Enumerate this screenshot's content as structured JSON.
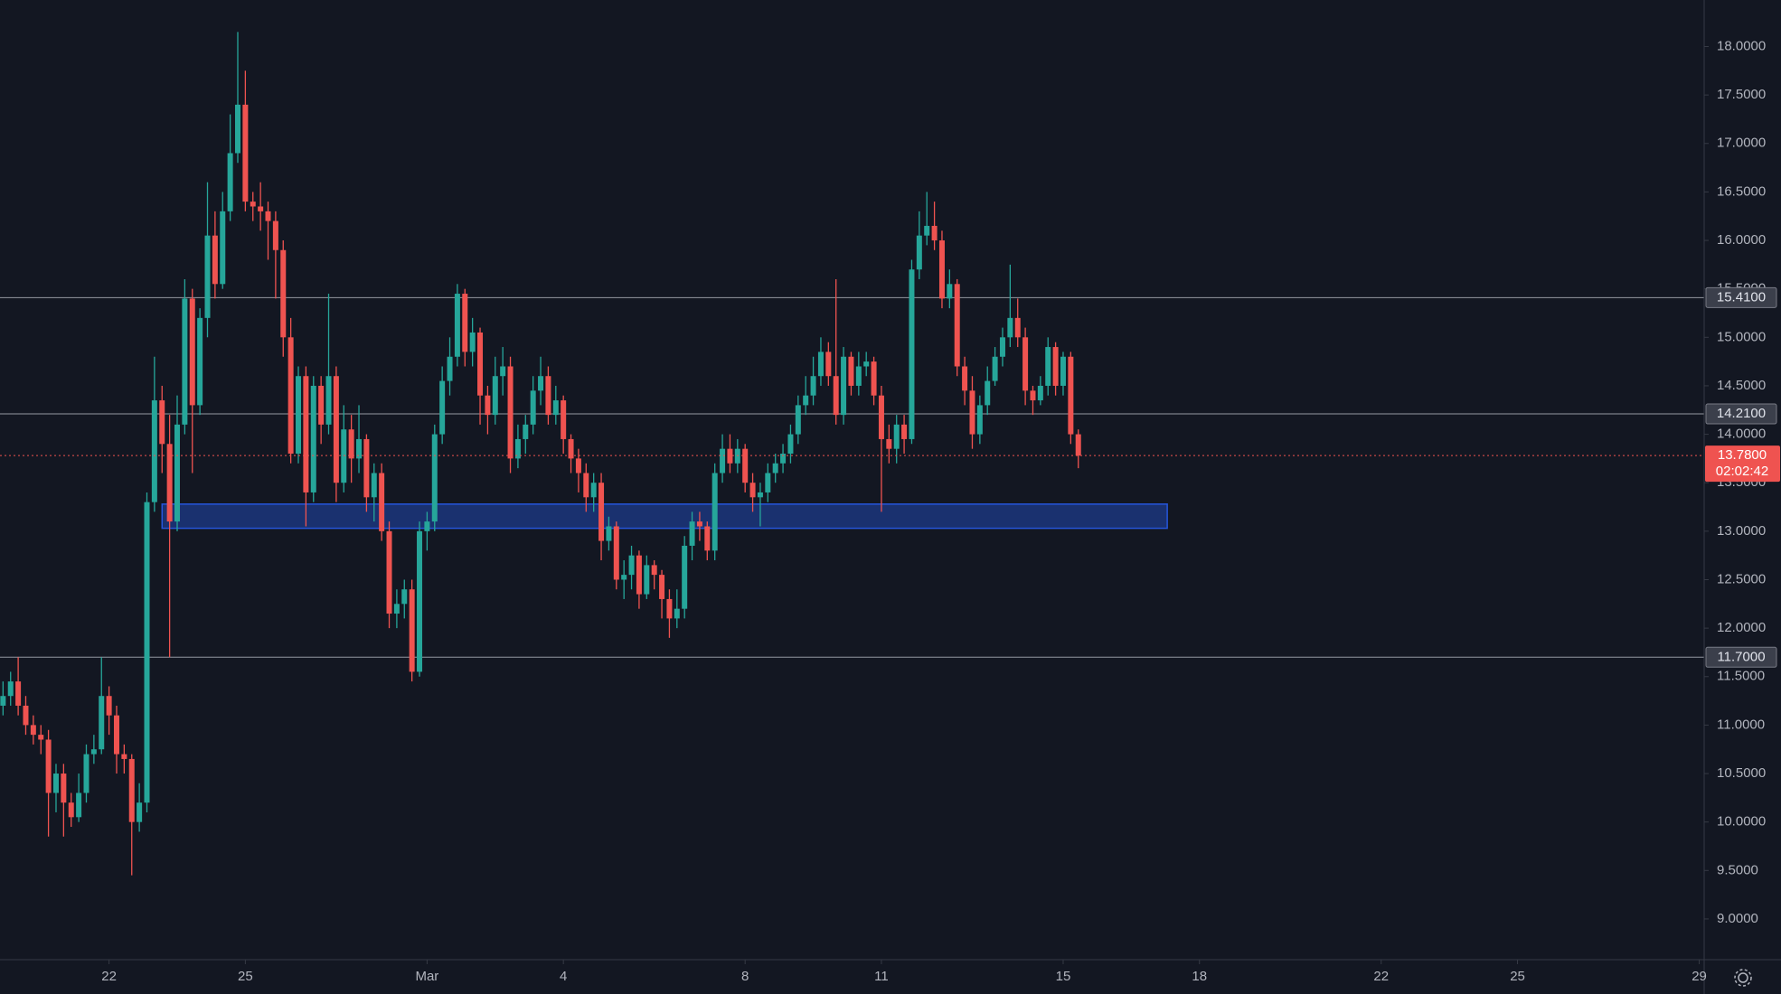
{
  "chart_data": {
    "type": "candlestick",
    "up_color": "#26a69a",
    "down_color": "#ef5350",
    "x": [
      -56,
      -52,
      -48,
      -44,
      -40,
      -36,
      -32,
      -28,
      -24,
      -20,
      -16,
      -12,
      -8,
      -4,
      0,
      4,
      8,
      12,
      16,
      20,
      24,
      28,
      32,
      36,
      40,
      44,
      48,
      52,
      56,
      60,
      64,
      68,
      72,
      76,
      80,
      84,
      88,
      92,
      96,
      100,
      104,
      108,
      112,
      116,
      120,
      124,
      128,
      132,
      136,
      140,
      144,
      148,
      152,
      156,
      160,
      164,
      168,
      172,
      176,
      180,
      184,
      188,
      192,
      196,
      200,
      204,
      208,
      212,
      216,
      220,
      224,
      228,
      232,
      236,
      240,
      244,
      248,
      252,
      256,
      260,
      264,
      268,
      272,
      276,
      280,
      284,
      288,
      292,
      296,
      300,
      304,
      308,
      312,
      316,
      320,
      324,
      328,
      332,
      336,
      340,
      344,
      348,
      352,
      356,
      360,
      364,
      368,
      372,
      376,
      380,
      384,
      388,
      392,
      396,
      400,
      404,
      408,
      412,
      416,
      420,
      424,
      428,
      432,
      436,
      440,
      444,
      448,
      452,
      456,
      460,
      464,
      468,
      472,
      476,
      480,
      484,
      488,
      492,
      496,
      500,
      504,
      508,
      512
    ],
    "open": [
      11.2,
      11.3,
      11.45,
      11.2,
      11.0,
      10.9,
      10.85,
      10.3,
      10.5,
      10.2,
      10.05,
      10.3,
      10.7,
      10.75,
      11.3,
      11.1,
      10.7,
      10.65,
      10.0,
      10.2,
      13.3,
      14.35,
      13.9,
      13.1,
      14.1,
      15.4,
      14.3,
      15.2,
      16.05,
      15.55,
      16.3,
      16.9,
      17.4,
      16.4,
      16.35,
      16.3,
      16.2,
      15.9,
      15.0,
      13.8,
      14.6,
      13.4,
      14.5,
      14.1,
      14.6,
      13.5,
      14.05,
      13.75,
      13.95,
      13.35,
      13.6,
      13.0,
      12.15,
      12.25,
      12.4,
      11.55,
      13.0,
      13.1,
      14.0,
      14.55,
      14.8,
      15.45,
      14.85,
      15.05,
      14.4,
      14.2,
      14.6,
      14.7,
      13.75,
      13.95,
      14.1,
      14.45,
      14.6,
      14.2,
      14.35,
      13.95,
      13.75,
      13.6,
      13.35,
      13.5,
      12.9,
      13.05,
      12.5,
      12.55,
      12.75,
      12.35,
      12.65,
      12.55,
      12.3,
      12.1,
      12.2,
      12.85,
      13.1,
      13.05,
      12.8,
      13.6,
      13.85,
      13.7,
      13.85,
      13.5,
      13.35,
      13.4,
      13.6,
      13.7,
      13.8,
      14.0,
      14.3,
      14.4,
      14.6,
      14.85,
      14.6,
      14.2,
      14.8,
      14.5,
      14.7,
      14.75,
      14.4,
      13.95,
      13.85,
      14.1,
      13.95,
      15.7,
      16.05,
      16.15,
      16.0,
      15.4,
      15.55,
      14.7,
      14.45,
      14.0,
      14.3,
      14.55,
      14.8,
      15.0,
      15.2,
      15.0,
      14.45,
      14.35,
      14.5,
      14.9,
      14.5,
      14.8,
      14.0
    ],
    "high": [
      11.45,
      11.55,
      11.7,
      11.3,
      11.1,
      11.0,
      10.95,
      10.6,
      10.6,
      10.3,
      10.5,
      10.8,
      10.9,
      11.7,
      11.4,
      11.2,
      10.8,
      10.7,
      10.4,
      13.4,
      14.8,
      14.5,
      14.2,
      14.4,
      15.6,
      15.5,
      15.3,
      16.6,
      16.3,
      16.5,
      17.3,
      18.15,
      17.75,
      16.5,
      16.6,
      16.4,
      16.3,
      16.0,
      15.2,
      14.7,
      14.7,
      14.6,
      14.6,
      15.45,
      14.7,
      14.3,
      14.2,
      14.3,
      14.0,
      13.7,
      13.7,
      13.1,
      12.4,
      12.5,
      12.5,
      13.1,
      13.2,
      14.1,
      14.7,
      15.0,
      15.55,
      15.5,
      15.2,
      15.1,
      14.5,
      14.8,
      14.9,
      14.8,
      14.1,
      14.2,
      14.6,
      14.8,
      14.7,
      14.5,
      14.4,
      14.0,
      13.85,
      13.7,
      13.6,
      13.6,
      13.15,
      13.1,
      12.7,
      12.85,
      12.8,
      12.75,
      12.7,
      12.6,
      12.4,
      12.4,
      12.95,
      13.2,
      13.2,
      13.1,
      13.7,
      14.0,
      14.0,
      13.95,
      13.9,
      13.6,
      13.5,
      13.7,
      13.8,
      13.9,
      14.1,
      14.4,
      14.6,
      14.8,
      15.0,
      14.95,
      15.6,
      14.9,
      14.85,
      14.85,
      14.85,
      14.8,
      14.5,
      14.1,
      14.2,
      14.2,
      15.8,
      16.3,
      16.5,
      16.4,
      16.1,
      15.7,
      15.6,
      14.8,
      14.6,
      14.4,
      14.7,
      14.9,
      15.1,
      15.75,
      15.4,
      15.1,
      14.5,
      14.6,
      15.0,
      14.95,
      14.85,
      14.85,
      14.05
    ],
    "low": [
      11.1,
      11.2,
      11.1,
      10.9,
      10.8,
      10.7,
      9.85,
      10.1,
      9.85,
      9.95,
      10.0,
      10.2,
      10.6,
      10.7,
      10.9,
      10.5,
      10.5,
      9.45,
      9.9,
      10.1,
      13.2,
      13.6,
      11.7,
      13.0,
      14.0,
      13.6,
      14.2,
      15.0,
      15.4,
      15.5,
      16.2,
      16.8,
      16.3,
      16.2,
      16.1,
      15.8,
      15.4,
      14.8,
      13.7,
      13.7,
      13.05,
      13.3,
      13.9,
      14.0,
      13.3,
      13.4,
      13.5,
      13.6,
      13.2,
      13.1,
      12.9,
      12.0,
      12.0,
      12.1,
      11.45,
      11.5,
      12.8,
      13.0,
      13.9,
      14.4,
      14.7,
      14.7,
      14.7,
      14.1,
      14.0,
      14.1,
      14.4,
      13.6,
      13.65,
      13.8,
      14.0,
      14.3,
      14.1,
      14.1,
      13.8,
      13.6,
      13.4,
      13.2,
      13.2,
      12.7,
      12.8,
      12.4,
      12.3,
      12.4,
      12.2,
      12.3,
      12.4,
      12.1,
      11.9,
      12.0,
      12.1,
      12.7,
      12.9,
      12.7,
      12.7,
      13.5,
      13.6,
      13.6,
      13.4,
      13.2,
      13.05,
      13.3,
      13.5,
      13.6,
      13.7,
      13.9,
      14.2,
      14.3,
      14.5,
      14.5,
      14.1,
      14.1,
      14.4,
      14.4,
      14.6,
      14.3,
      13.2,
      13.7,
      13.7,
      13.8,
      13.9,
      15.6,
      15.95,
      15.9,
      15.3,
      15.3,
      14.6,
      14.3,
      13.85,
      13.9,
      14.2,
      14.5,
      14.7,
      14.9,
      14.9,
      14.3,
      14.2,
      14.3,
      14.4,
      14.4,
      14.4,
      13.9,
      13.65
    ],
    "close": [
      11.3,
      11.45,
      11.2,
      11.0,
      10.9,
      10.85,
      10.3,
      10.5,
      10.2,
      10.05,
      10.3,
      10.7,
      10.75,
      11.3,
      11.1,
      10.7,
      10.65,
      10.0,
      10.2,
      13.3,
      14.35,
      13.9,
      13.1,
      14.1,
      15.4,
      14.3,
      15.2,
      16.05,
      15.55,
      16.3,
      16.9,
      17.4,
      16.4,
      16.35,
      16.3,
      16.2,
      15.9,
      15.0,
      13.8,
      14.6,
      13.4,
      14.5,
      14.1,
      14.6,
      13.5,
      14.05,
      13.75,
      13.95,
      13.35,
      13.6,
      13.0,
      12.15,
      12.25,
      12.4,
      11.55,
      13.0,
      13.1,
      14.0,
      14.55,
      14.8,
      15.45,
      14.85,
      15.05,
      14.4,
      14.2,
      14.6,
      14.7,
      13.75,
      13.95,
      14.1,
      14.45,
      14.6,
      14.2,
      14.35,
      13.95,
      13.75,
      13.6,
      13.35,
      13.5,
      12.9,
      13.05,
      12.5,
      12.55,
      12.75,
      12.35,
      12.65,
      12.55,
      12.3,
      12.1,
      12.2,
      12.85,
      13.1,
      13.05,
      12.8,
      13.6,
      13.85,
      13.7,
      13.85,
      13.5,
      13.35,
      13.4,
      13.6,
      13.7,
      13.8,
      14.0,
      14.3,
      14.4,
      14.6,
      14.85,
      14.6,
      14.2,
      14.8,
      14.5,
      14.7,
      14.75,
      14.4,
      13.95,
      13.85,
      14.1,
      13.95,
      15.7,
      16.05,
      16.15,
      16.0,
      15.4,
      15.55,
      14.7,
      14.45,
      14.0,
      14.3,
      14.55,
      14.8,
      15.0,
      15.2,
      15.0,
      14.45,
      14.35,
      14.5,
      14.9,
      14.5,
      14.8,
      14.0,
      13.78
    ],
    "xlim": [
      -57.6,
      842.6
    ],
    "xticks": [
      {
        "value": 0,
        "label": "22"
      },
      {
        "value": 72,
        "label": "25"
      },
      {
        "value": 168,
        "label": "Mar"
      },
      {
        "value": 240,
        "label": "4"
      },
      {
        "value": 336,
        "label": "8"
      },
      {
        "value": 408,
        "label": "11"
      },
      {
        "value": 504,
        "label": "15"
      },
      {
        "value": 576,
        "label": "18"
      },
      {
        "value": 672,
        "label": "22"
      },
      {
        "value": 744,
        "label": "25"
      },
      {
        "value": 840,
        "label": "29"
      }
    ],
    "ylim": [
      8.58,
      18.48
    ],
    "yticks": [
      {
        "value": 9,
        "label": "9.0000"
      },
      {
        "value": 9.5,
        "label": "9.5000"
      },
      {
        "value": 10,
        "label": "10.0000"
      },
      {
        "value": 10.5,
        "label": "10.5000"
      },
      {
        "value": 11,
        "label": "11.0000"
      },
      {
        "value": 11.5,
        "label": "11.5000"
      },
      {
        "value": 12,
        "label": "12.0000"
      },
      {
        "value": 12.5,
        "label": "12.5000"
      },
      {
        "value": 13,
        "label": "13.0000"
      },
      {
        "value": 13.5,
        "label": "13.5000"
      },
      {
        "value": 14,
        "label": "14.0000"
      },
      {
        "value": 14.5,
        "label": "14.5000"
      },
      {
        "value": 15,
        "label": "15.0000"
      },
      {
        "value": 15.5,
        "label": "15.5000"
      },
      {
        "value": 16,
        "label": "16.0000"
      },
      {
        "value": 16.5,
        "label": "16.5000"
      },
      {
        "value": 17,
        "label": "17.0000"
      },
      {
        "value": 17.5,
        "label": "17.5000"
      },
      {
        "value": 18,
        "label": "18.0000"
      }
    ],
    "hlines": [
      {
        "value": 15.41,
        "label": "15.4100"
      },
      {
        "value": 14.21,
        "label": "14.2100"
      },
      {
        "value": 11.7,
        "label": "11.7000"
      }
    ],
    "last_price": {
      "value": 13.78,
      "label": "13.7800"
    },
    "countdown": "02:02:42",
    "zone": {
      "x": [
        28,
        559
      ],
      "y": [
        13.03,
        13.28
      ],
      "color": "#2962ff"
    }
  }
}
